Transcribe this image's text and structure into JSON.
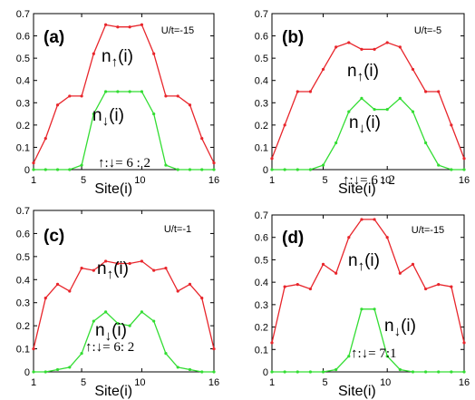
{
  "chart_data": [
    {
      "type": "line",
      "panel_label": "(a)",
      "param_text": "U/t=-15",
      "x": [
        1,
        2,
        3,
        4,
        5,
        6,
        7,
        8,
        9,
        10,
        11,
        12,
        13,
        14,
        15,
        16
      ],
      "series": [
        {
          "name": "n↑(i)",
          "color": "#e8252b",
          "values": [
            0.03,
            0.14,
            0.29,
            0.33,
            0.33,
            0.52,
            0.65,
            0.64,
            0.64,
            0.65,
            0.52,
            0.33,
            0.33,
            0.29,
            0.14,
            0.03
          ]
        },
        {
          "name": "n↓(i)",
          "color": "#33dd33",
          "values": [
            0.0,
            0.0,
            0.0,
            0.0,
            0.02,
            0.25,
            0.35,
            0.35,
            0.35,
            0.35,
            0.25,
            0.02,
            0.0,
            0.0,
            0.0,
            0.0
          ]
        }
      ],
      "up_label": {
        "n": "n",
        "arrow": "↑",
        "site": "(i)"
      },
      "down_label": {
        "n": "n",
        "arrow": "↓",
        "site": "(i)"
      },
      "ratio_text": "↑:↓= 6 : 2",
      "xlim": [
        1,
        16
      ],
      "ylim": [
        0,
        0.7
      ],
      "xticks": [
        "1",
        "5",
        "10",
        "16"
      ],
      "yticks": [
        "0",
        "0.1",
        "0.2",
        "0.3",
        "0.4",
        "0.5",
        "0.6",
        "0.7"
      ],
      "xlabel": "Site(i)"
    },
    {
      "type": "line",
      "panel_label": "(b)",
      "param_text": "U/t=-5",
      "x": [
        1,
        2,
        3,
        4,
        5,
        6,
        7,
        8,
        9,
        10,
        11,
        12,
        13,
        14,
        15,
        16
      ],
      "series": [
        {
          "name": "n↑(i)",
          "color": "#e8252b",
          "values": [
            0.05,
            0.2,
            0.35,
            0.35,
            0.45,
            0.55,
            0.57,
            0.54,
            0.54,
            0.57,
            0.55,
            0.45,
            0.35,
            0.35,
            0.2,
            0.05
          ]
        },
        {
          "name": "n↓(i)",
          "color": "#33dd33",
          "values": [
            0.0,
            0.0,
            0.0,
            0.0,
            0.02,
            0.12,
            0.26,
            0.32,
            0.27,
            0.27,
            0.32,
            0.26,
            0.12,
            0.02,
            0.0,
            0.0
          ]
        }
      ],
      "up_label": {
        "n": "n",
        "arrow": "↑",
        "site": "(i)"
      },
      "down_label": {
        "n": "n",
        "arrow": "↓",
        "site": "(i)"
      },
      "ratio_text": "↑:↓= 6 : 2",
      "xlim": [
        1,
        16
      ],
      "ylim": [
        0,
        0.7
      ],
      "xticks": [
        "1",
        "5",
        "10",
        "16"
      ],
      "yticks": [
        "0",
        "0.1",
        "0.2",
        "0.3",
        "0.4",
        "0.5",
        "0.6",
        "0.7"
      ],
      "xlabel": "Site(i)"
    },
    {
      "type": "line",
      "panel_label": "(c)",
      "param_text": "U/t=-1",
      "x": [
        1,
        2,
        3,
        4,
        5,
        6,
        7,
        8,
        9,
        10,
        11,
        12,
        13,
        14,
        15,
        16
      ],
      "series": [
        {
          "name": "n↑(i)",
          "color": "#e8252b",
          "values": [
            0.1,
            0.32,
            0.38,
            0.35,
            0.45,
            0.44,
            0.48,
            0.47,
            0.47,
            0.48,
            0.44,
            0.45,
            0.35,
            0.38,
            0.32,
            0.1
          ]
        },
        {
          "name": "n↓(i)",
          "color": "#33dd33",
          "values": [
            0.0,
            0.0,
            0.01,
            0.02,
            0.08,
            0.22,
            0.26,
            0.21,
            0.2,
            0.26,
            0.22,
            0.08,
            0.02,
            0.01,
            0.0,
            0.0
          ]
        }
      ],
      "up_label": {
        "n": "n",
        "arrow": "↑",
        "site": "(i)"
      },
      "down_label": {
        "n": "n",
        "arrow": "↓",
        "site": "(i)"
      },
      "ratio_text": "↑:↓= 6: 2",
      "xlim": [
        1,
        16
      ],
      "ylim": [
        0,
        0.7
      ],
      "xticks": [
        "1",
        "5",
        "10",
        "16"
      ],
      "yticks": [
        "0",
        "0.1",
        "0.2",
        "0.3",
        "0.4",
        "0.5",
        "0.6",
        "0.7"
      ],
      "xlabel": "Site(i)"
    },
    {
      "type": "line",
      "panel_label": "(d)",
      "param_text": "U/t=-15",
      "x": [
        1,
        2,
        3,
        4,
        5,
        6,
        7,
        8,
        9,
        10,
        11,
        12,
        13,
        14,
        15,
        16
      ],
      "series": [
        {
          "name": "n↑(i)",
          "color": "#e8252b",
          "values": [
            0.13,
            0.38,
            0.39,
            0.37,
            0.48,
            0.44,
            0.6,
            0.68,
            0.68,
            0.6,
            0.44,
            0.48,
            0.37,
            0.39,
            0.38,
            0.13
          ]
        },
        {
          "name": "n↓(i)",
          "color": "#33dd33",
          "values": [
            0.0,
            0.0,
            0.0,
            0.0,
            0.0,
            0.01,
            0.07,
            0.28,
            0.28,
            0.07,
            0.01,
            0.0,
            0.0,
            0.0,
            0.0,
            0.0
          ]
        }
      ],
      "up_label": {
        "n": "n",
        "arrow": "↑",
        "site": "(i)"
      },
      "down_label": {
        "n": "n",
        "arrow": "↓",
        "site": "(i)"
      },
      "ratio_text": "↑:↓= 7:1",
      "xlim": [
        1,
        16
      ],
      "ylim": [
        0,
        0.7
      ],
      "xticks": [
        "1",
        "5",
        "10",
        "16"
      ],
      "yticks": [
        "0",
        "0.1",
        "0.2",
        "0.3",
        "0.4",
        "0.5",
        "0.6",
        "0.7"
      ],
      "xlabel": "Site(i)"
    }
  ]
}
